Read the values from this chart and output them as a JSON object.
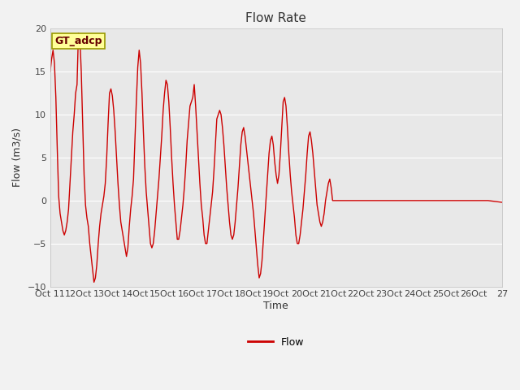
{
  "title": "Flow Rate",
  "xlabel": "Time",
  "ylabel": "Flow (m3/s)",
  "ylim": [
    -10,
    20
  ],
  "xlim": [
    11,
    27
  ],
  "line_color": "#cc0000",
  "line_width": 1.0,
  "bg_color": "#e8e8e8",
  "fig_bg_color": "#f2f2f2",
  "annotation_text": "GT_adcp",
  "annotation_bg": "#ffff99",
  "annotation_border": "#999900",
  "annotation_text_color": "#660000",
  "legend_label": "Flow",
  "x_ticks": [
    11,
    12,
    13,
    14,
    15,
    16,
    17,
    18,
    19,
    20,
    21,
    22,
    23,
    24,
    25,
    26,
    27
  ],
  "x_tick_labels": [
    "Oct 11",
    "12Oct",
    "13Oct",
    "14Oct",
    "15Oct",
    "16Oct",
    "17Oct",
    "18Oct",
    "19Oct",
    "20Oct",
    "21Oct",
    "22Oct",
    "23Oct",
    "24Oct",
    "25Oct",
    "26Oct",
    "27"
  ],
  "y_ticks": [
    -10,
    -5,
    0,
    5,
    10,
    15,
    20
  ],
  "data_x": [
    11.0,
    11.05,
    11.1,
    11.15,
    11.2,
    11.25,
    11.3,
    11.35,
    11.4,
    11.45,
    11.5,
    11.55,
    11.6,
    11.65,
    11.7,
    11.75,
    11.8,
    11.85,
    11.9,
    11.95,
    12.0,
    12.05,
    12.1,
    12.15,
    12.2,
    12.25,
    12.3,
    12.35,
    12.4,
    12.45,
    12.5,
    12.55,
    12.6,
    12.65,
    12.7,
    12.75,
    12.8,
    12.85,
    12.9,
    12.95,
    13.0,
    13.05,
    13.1,
    13.15,
    13.2,
    13.25,
    13.3,
    13.35,
    13.4,
    13.45,
    13.5,
    13.55,
    13.6,
    13.65,
    13.7,
    13.75,
    13.8,
    13.85,
    13.9,
    13.95,
    14.0,
    14.05,
    14.1,
    14.15,
    14.2,
    14.25,
    14.3,
    14.35,
    14.4,
    14.45,
    14.5,
    14.55,
    14.6,
    14.65,
    14.7,
    14.75,
    14.8,
    14.85,
    14.9,
    14.95,
    15.0,
    15.05,
    15.1,
    15.15,
    15.2,
    15.25,
    15.3,
    15.35,
    15.4,
    15.45,
    15.5,
    15.55,
    15.6,
    15.65,
    15.7,
    15.75,
    15.8,
    15.85,
    15.9,
    15.95,
    16.0,
    16.05,
    16.1,
    16.15,
    16.2,
    16.25,
    16.3,
    16.35,
    16.4,
    16.45,
    16.5,
    16.55,
    16.6,
    16.65,
    16.7,
    16.75,
    16.8,
    16.85,
    16.9,
    16.95,
    17.0,
    17.05,
    17.1,
    17.15,
    17.2,
    17.25,
    17.3,
    17.35,
    17.4,
    17.45,
    17.5,
    17.55,
    17.6,
    17.65,
    17.7,
    17.75,
    17.8,
    17.85,
    17.9,
    17.95,
    18.0,
    18.05,
    18.1,
    18.15,
    18.2,
    18.25,
    18.3,
    18.35,
    18.4,
    18.45,
    18.5,
    18.55,
    18.6,
    18.65,
    18.7,
    18.75,
    18.8,
    18.85,
    18.9,
    18.95,
    19.0,
    19.05,
    19.1,
    19.15,
    19.2,
    19.25,
    19.3,
    19.35,
    19.4,
    19.45,
    19.5,
    19.55,
    19.6,
    19.65,
    19.7,
    19.75,
    19.8,
    19.85,
    19.9,
    19.95,
    20.0,
    20.05,
    20.1,
    20.15,
    20.2,
    20.25,
    20.3,
    20.35,
    20.4,
    20.45,
    20.5,
    20.55,
    20.6,
    20.65,
    20.7,
    20.75,
    20.8,
    20.85,
    20.9,
    20.95,
    21.0,
    21.5,
    22.0,
    22.5,
    23.0,
    23.5,
    24.0,
    24.5,
    25.0,
    25.5,
    26.0,
    26.5,
    27.0
  ],
  "data_y": [
    15.0,
    16.5,
    17.5,
    16.0,
    12.0,
    6.0,
    0.5,
    -1.5,
    -2.5,
    -3.5,
    -4.0,
    -3.5,
    -2.5,
    -1.0,
    2.0,
    5.0,
    8.0,
    10.0,
    12.5,
    13.5,
    19.5,
    19.0,
    15.0,
    9.0,
    3.0,
    -0.5,
    -2.0,
    -3.0,
    -5.0,
    -6.5,
    -8.0,
    -9.5,
    -9.0,
    -7.5,
    -5.0,
    -3.0,
    -1.5,
    -0.5,
    0.5,
    2.0,
    5.0,
    9.0,
    12.5,
    13.0,
    12.2,
    10.5,
    8.0,
    5.0,
    2.0,
    -0.5,
    -2.5,
    -3.5,
    -4.5,
    -5.5,
    -6.5,
    -5.5,
    -3.0,
    -1.0,
    0.5,
    2.5,
    7.0,
    11.5,
    15.5,
    17.5,
    16.0,
    12.5,
    8.0,
    4.0,
    1.0,
    -1.0,
    -3.0,
    -5.0,
    -5.5,
    -5.0,
    -3.5,
    -1.5,
    0.5,
    2.5,
    5.0,
    7.5,
    10.5,
    12.5,
    14.0,
    13.5,
    11.5,
    8.5,
    5.0,
    2.0,
    -0.5,
    -2.5,
    -4.5,
    -4.5,
    -3.5,
    -2.0,
    -0.5,
    1.5,
    4.0,
    7.0,
    9.0,
    11.0,
    11.5,
    12.0,
    13.5,
    11.0,
    8.0,
    5.0,
    2.0,
    -0.5,
    -2.0,
    -4.0,
    -5.0,
    -5.0,
    -3.5,
    -2.0,
    -0.5,
    1.0,
    3.5,
    6.5,
    9.5,
    10.0,
    10.5,
    10.0,
    8.5,
    6.5,
    4.0,
    1.5,
    -0.5,
    -2.5,
    -4.0,
    -4.5,
    -4.0,
    -2.5,
    -0.5,
    1.5,
    4.0,
    6.5,
    8.0,
    8.5,
    7.5,
    6.0,
    4.5,
    3.0,
    1.5,
    0.0,
    -1.5,
    -3.5,
    -5.5,
    -7.5,
    -9.0,
    -8.5,
    -7.0,
    -4.5,
    -2.0,
    0.5,
    3.0,
    5.5,
    7.0,
    7.5,
    6.5,
    4.5,
    3.0,
    2.0,
    3.0,
    5.5,
    8.5,
    11.5,
    12.0,
    11.0,
    8.5,
    5.5,
    3.0,
    1.0,
    -0.5,
    -2.0,
    -4.0,
    -5.0,
    -5.0,
    -4.0,
    -2.5,
    -1.0,
    1.0,
    3.0,
    5.5,
    7.5,
    8.0,
    7.0,
    5.5,
    3.5,
    1.5,
    -0.5,
    -1.5,
    -2.5,
    -3.0,
    -2.5,
    -1.5,
    0.0,
    1.0,
    2.0,
    2.5,
    1.5,
    0.0,
    0.0,
    0.0,
    0.0,
    0.0,
    0.0,
    0.0,
    0.0,
    0.0,
    0.0,
    0.0,
    0.0,
    -0.2
  ],
  "grid_color": "#ffffff",
  "tick_label_color": "#444444",
  "tick_fontsize": 8,
  "title_fontsize": 11,
  "label_fontsize": 9,
  "legend_fontsize": 9,
  "flatline_start_x": 21.0
}
